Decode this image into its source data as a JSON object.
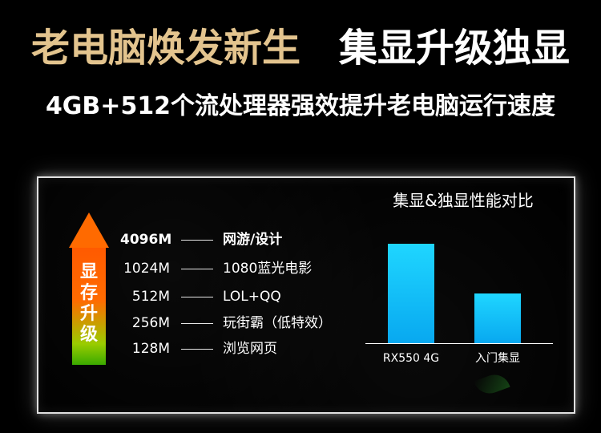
{
  "headline": {
    "left": "老电脑焕发新生",
    "right": "集显升级独显"
  },
  "subline": "4GB+512个流处理器强效提升老电脑运行速度",
  "upgrade_arrow": {
    "chars": [
      "显",
      "存",
      "升",
      "级"
    ]
  },
  "capacity_list": [
    {
      "value": "4096M",
      "use": "网游/设计"
    },
    {
      "value": "1024M",
      "use": "1080蓝光电影"
    },
    {
      "value": "512M",
      "use": "LOL+QQ"
    },
    {
      "value": "256M",
      "use": "玩街霸（低特效）"
    },
    {
      "value": "128M",
      "use": "浏览网页"
    }
  ],
  "comparison": {
    "title": "集显&独显性能对比",
    "bars": [
      {
        "label": "RX550 4G",
        "level": 1.0
      },
      {
        "label": "入门集显",
        "level": 0.5
      }
    ]
  },
  "colors": {
    "headline_gold": "#e3c48e",
    "arrow_top": "#ff6a00",
    "arrow_bottom": "#3aaa00",
    "bar": "#1fd6ff"
  }
}
